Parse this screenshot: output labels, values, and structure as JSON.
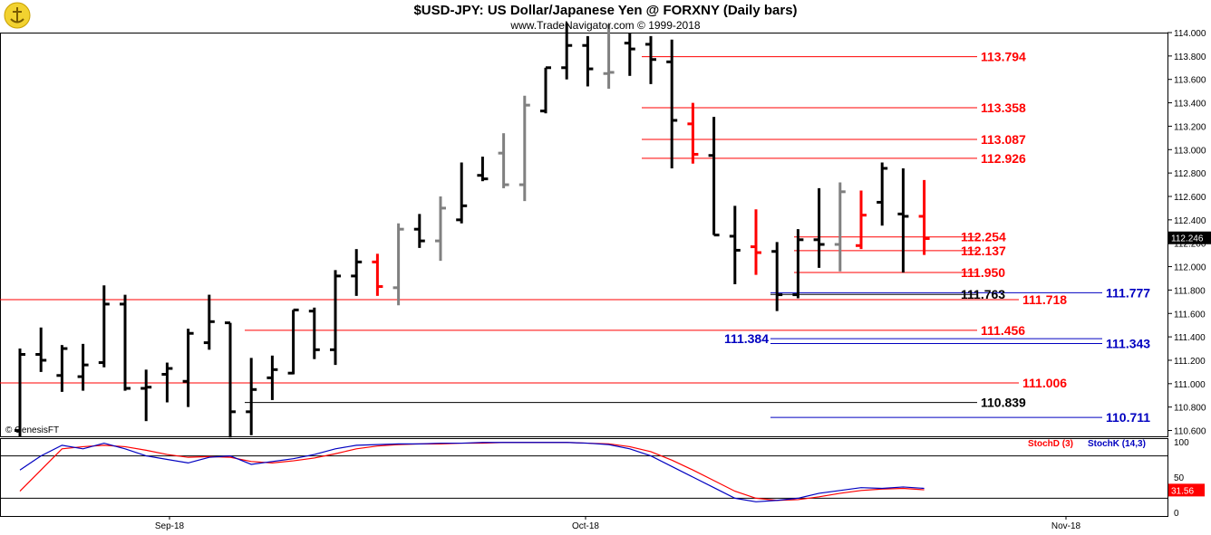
{
  "header": {
    "title": "$USD-JPY:  US Dollar/Japanese Yen @ FORXNY  (Daily bars)",
    "subtitle": "www.TradeNavigator.com © 1999-2018"
  },
  "watermark": "© GenesisFT",
  "colors": {
    "up": "#000000",
    "gray": "#808080",
    "red": "#ff0000",
    "blue": "#0000c0",
    "stochD": "#ff0000",
    "stochK": "#0000c0"
  },
  "chart_data": {
    "type": "bar",
    "subtype": "ohlc",
    "y_axis_ticks": [
      "114.000",
      "113.800",
      "113.600",
      "113.400",
      "113.200",
      "113.000",
      "112.800",
      "112.600",
      "112.400",
      "112.200",
      "112.000",
      "111.800",
      "111.600",
      "111.400",
      "111.200",
      "111.000",
      "110.800",
      "110.600"
    ],
    "ylim": [
      110.55,
      114.0
    ],
    "last_price": "112.246",
    "x_axis_labels": [
      "Sep-18",
      "Oct-18",
      "Nov-18"
    ],
    "bars": [
      {
        "o": 110.6,
        "h": 111.3,
        "l": 110.55,
        "c": 111.25,
        "t": "k"
      },
      {
        "o": 111.25,
        "h": 111.48,
        "l": 111.1,
        "c": 111.2,
        "t": "k"
      },
      {
        "o": 111.07,
        "h": 111.33,
        "l": 110.93,
        "c": 111.3,
        "t": "k"
      },
      {
        "o": 111.06,
        "h": 111.34,
        "l": 110.94,
        "c": 111.16,
        "t": "k"
      },
      {
        "o": 111.18,
        "h": 111.84,
        "l": 111.14,
        "c": 111.68,
        "t": "k"
      },
      {
        "o": 111.68,
        "h": 111.76,
        "l": 110.94,
        "c": 110.96,
        "t": "k"
      },
      {
        "o": 110.96,
        "h": 111.12,
        "l": 110.68,
        "c": 110.97,
        "t": "k"
      },
      {
        "o": 111.08,
        "h": 111.18,
        "l": 110.84,
        "c": 111.13,
        "t": "k"
      },
      {
        "o": 111.02,
        "h": 111.47,
        "l": 110.8,
        "c": 111.43,
        "t": "k"
      },
      {
        "o": 111.35,
        "h": 111.76,
        "l": 111.29,
        "c": 111.53,
        "t": "k"
      },
      {
        "o": 111.52,
        "h": 111.52,
        "l": 110.54,
        "c": 110.76,
        "t": "k"
      },
      {
        "o": 110.76,
        "h": 111.22,
        "l": 110.56,
        "c": 110.95,
        "t": "k"
      },
      {
        "o": 111.05,
        "h": 111.24,
        "l": 110.86,
        "c": 111.12,
        "t": "k"
      },
      {
        "o": 111.09,
        "h": 111.63,
        "l": 111.08,
        "c": 111.63,
        "t": "k"
      },
      {
        "o": 111.62,
        "h": 111.65,
        "l": 111.21,
        "c": 111.29,
        "t": "k"
      },
      {
        "o": 111.29,
        "h": 111.97,
        "l": 111.16,
        "c": 111.92,
        "t": "k"
      },
      {
        "o": 111.92,
        "h": 112.15,
        "l": 111.75,
        "c": 112.04,
        "t": "k"
      },
      {
        "o": 112.04,
        "h": 112.11,
        "l": 111.75,
        "c": 111.83,
        "t": "r"
      },
      {
        "o": 111.82,
        "h": 112.37,
        "l": 111.67,
        "c": 112.32,
        "t": "g"
      },
      {
        "o": 112.32,
        "h": 112.45,
        "l": 112.16,
        "c": 112.22,
        "t": "k"
      },
      {
        "o": 112.22,
        "h": 112.6,
        "l": 112.05,
        "c": 112.5,
        "t": "g"
      },
      {
        "o": 112.4,
        "h": 112.89,
        "l": 112.37,
        "c": 112.52,
        "t": "k"
      },
      {
        "o": 112.78,
        "h": 112.94,
        "l": 112.73,
        "c": 112.75,
        "t": "k"
      },
      {
        "o": 112.97,
        "h": 113.14,
        "l": 112.67,
        "c": 112.7,
        "t": "g"
      },
      {
        "o": 112.7,
        "h": 113.46,
        "l": 112.56,
        "c": 113.38,
        "t": "g"
      },
      {
        "o": 113.33,
        "h": 113.7,
        "l": 113.31,
        "c": 113.7,
        "t": "k"
      },
      {
        "o": 113.7,
        "h": 114.08,
        "l": 113.6,
        "c": 113.89,
        "t": "k"
      },
      {
        "o": 113.89,
        "h": 113.97,
        "l": 113.54,
        "c": 113.69,
        "t": "k"
      },
      {
        "o": 113.65,
        "h": 114.07,
        "l": 113.52,
        "c": 113.66,
        "t": "g"
      },
      {
        "o": 113.91,
        "h": 114.0,
        "l": 113.63,
        "c": 113.86,
        "t": "k"
      },
      {
        "o": 113.9,
        "h": 113.97,
        "l": 113.56,
        "c": 113.77,
        "t": "k"
      },
      {
        "o": 113.75,
        "h": 113.94,
        "l": 112.84,
        "c": 113.25,
        "t": "k"
      },
      {
        "o": 113.22,
        "h": 113.4,
        "l": 112.88,
        "c": 112.96,
        "t": "r"
      },
      {
        "o": 112.95,
        "h": 113.28,
        "l": 112.27,
        "c": 112.27,
        "t": "k"
      },
      {
        "o": 112.26,
        "h": 112.52,
        "l": 111.85,
        "c": 112.14,
        "t": "k"
      },
      {
        "o": 112.17,
        "h": 112.49,
        "l": 111.93,
        "c": 112.12,
        "t": "r"
      },
      {
        "o": 112.13,
        "h": 112.21,
        "l": 111.62,
        "c": 111.76,
        "t": "k"
      },
      {
        "o": 111.76,
        "h": 112.32,
        "l": 111.73,
        "c": 112.23,
        "t": "k"
      },
      {
        "o": 112.23,
        "h": 112.67,
        "l": 111.99,
        "c": 112.19,
        "t": "k"
      },
      {
        "o": 112.19,
        "h": 112.72,
        "l": 111.96,
        "c": 112.64,
        "t": "g"
      },
      {
        "o": 112.18,
        "h": 112.65,
        "l": 112.15,
        "c": 112.44,
        "t": "r"
      },
      {
        "o": 112.55,
        "h": 112.89,
        "l": 112.35,
        "c": 112.84,
        "t": "k"
      },
      {
        "o": 112.45,
        "h": 112.84,
        "l": 111.95,
        "c": 112.43,
        "t": "k"
      },
      {
        "o": 112.43,
        "h": 112.74,
        "l": 112.1,
        "c": 112.24,
        "t": "r"
      }
    ],
    "levels": [
      {
        "value": 113.794,
        "label": "113.794",
        "color": "#ff0000",
        "x1": 0.55
      },
      {
        "value": 113.358,
        "label": "113.358",
        "color": "#ff0000",
        "x1": 0.55
      },
      {
        "value": 113.087,
        "label": "113.087",
        "color": "#ff0000",
        "x1": 0.55
      },
      {
        "value": 112.926,
        "label": "112.926",
        "color": "#ff0000",
        "x1": 0.55
      },
      {
        "value": 112.254,
        "label": "112.254",
        "color": "#ff0000",
        "x1": 0.68
      },
      {
        "value": 112.137,
        "label": "112.137",
        "color": "#ff0000",
        "x1": 0.68
      },
      {
        "value": 111.95,
        "label": "111.950",
        "color": "#ff0000",
        "x1": 0.68
      },
      {
        "value": 111.777,
        "label": "111.777",
        "color": "#0000c0",
        "x1": 0.66
      },
      {
        "value": 111.763,
        "label": "111.763",
        "color": "#000000",
        "x1": 0.66
      },
      {
        "value": 111.718,
        "label": "111.718",
        "color": "#ff0000",
        "x1": 0.0
      },
      {
        "value": 111.456,
        "label": "111.456",
        "color": "#ff0000",
        "x1": 0.21
      },
      {
        "value": 111.384,
        "label": "111.384",
        "color": "#0000c0",
        "x1": 0.66
      },
      {
        "value": 111.343,
        "label": "111.343",
        "color": "#0000c0",
        "x1": 0.66
      },
      {
        "value": 111.006,
        "label": "111.006",
        "color": "#ff0000",
        "x1": 0.0
      },
      {
        "value": 110.839,
        "label": "110.839",
        "color": "#000000",
        "x1": 0.21
      },
      {
        "value": 110.711,
        "label": "110.711",
        "color": "#0000c0",
        "x1": 0.66
      }
    ],
    "stochastic": {
      "legend": [
        "StochD (3)",
        "StochK (14,3)"
      ],
      "y_ticks": [
        "100",
        "50",
        "0"
      ],
      "last_value": "31.56",
      "k": [
        60,
        80,
        95,
        90,
        98,
        90,
        80,
        75,
        70,
        78,
        80,
        68,
        72,
        76,
        82,
        90,
        95,
        96,
        97,
        97,
        98,
        98,
        99,
        99,
        99,
        99,
        99,
        98,
        96,
        90,
        80,
        65,
        50,
        35,
        20,
        15,
        17,
        20,
        27,
        31,
        35,
        34,
        36,
        34
      ],
      "d": [
        30,
        60,
        90,
        93,
        95,
        93,
        88,
        82,
        78,
        79,
        78,
        72,
        70,
        73,
        77,
        83,
        90,
        94,
        96,
        97,
        97,
        98,
        98,
        99,
        99,
        99,
        99,
        98,
        97,
        93,
        86,
        74,
        60,
        45,
        30,
        20,
        17,
        18,
        22,
        27,
        31,
        33,
        34,
        32
      ]
    }
  }
}
